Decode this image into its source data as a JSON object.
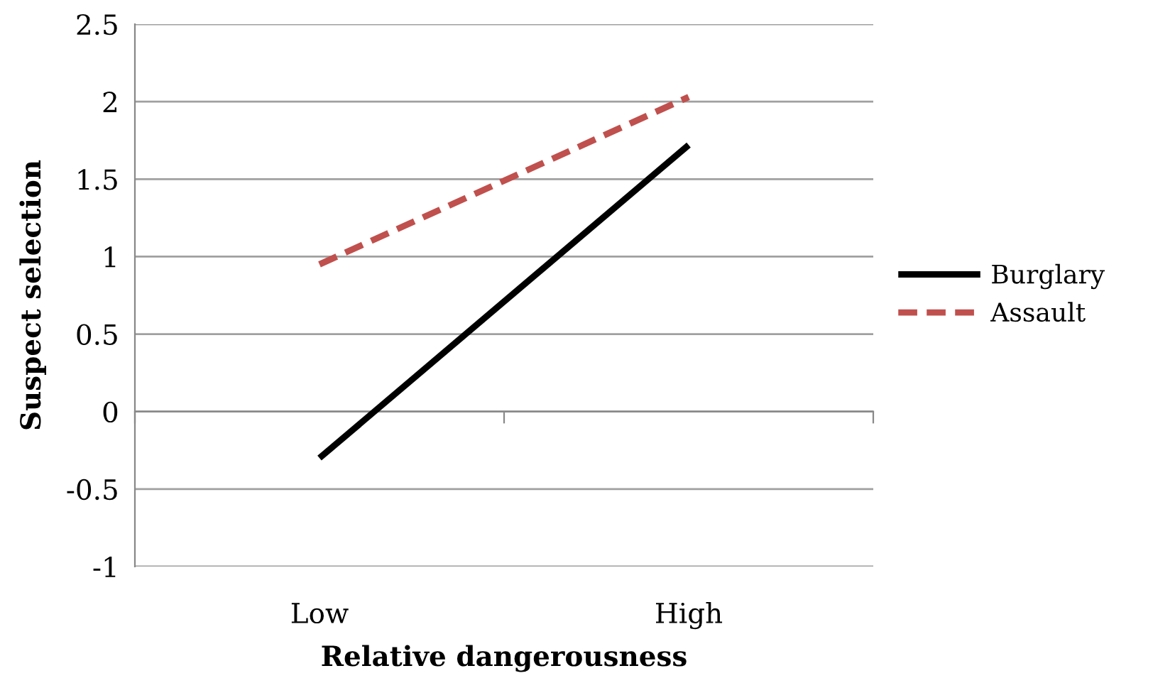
{
  "chart_data": {
    "type": "line",
    "xlabel": "Relative dangerousness",
    "ylabel": "Suspect selection",
    "categories": [
      "Low",
      "High"
    ],
    "series": [
      {
        "name": "Burglary",
        "color": "#000000",
        "values": [
          -0.3,
          1.72
        ],
        "line_style": "solid"
      },
      {
        "name": "Assault",
        "color": "#c0504d",
        "values": [
          0.95,
          2.03
        ],
        "line_style": "dashed"
      }
    ],
    "ylim": [
      -1,
      2.5
    ],
    "yticks": [
      -1,
      -0.5,
      0,
      0.5,
      1,
      1.5,
      2,
      2.5
    ],
    "grid": "y",
    "legend": "right",
    "marker": "none"
  }
}
